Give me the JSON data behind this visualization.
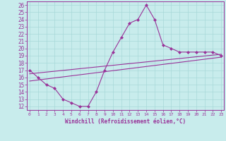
{
  "x_data": [
    0,
    1,
    2,
    3,
    4,
    5,
    6,
    7,
    8,
    9,
    10,
    11,
    12,
    13,
    14,
    15,
    16,
    17,
    18,
    19,
    20,
    21,
    22,
    23
  ],
  "line1": [
    17.0,
    16.0,
    15.0,
    14.5,
    13.0,
    12.5,
    12.0,
    12.0,
    14.0,
    17.0,
    19.5,
    21.5,
    23.5,
    24.0,
    26.0,
    24.0,
    20.5,
    20.0,
    19.5,
    19.5,
    19.5,
    19.5,
    19.5,
    19.0
  ],
  "line2_x": [
    0,
    23
  ],
  "line2_y": [
    16.5,
    19.2
  ],
  "line3_x": [
    0,
    23
  ],
  "line3_y": [
    15.5,
    18.8
  ],
  "xlim": [
    -0.3,
    23.3
  ],
  "ylim": [
    11.5,
    26.5
  ],
  "yticks": [
    12,
    13,
    14,
    15,
    16,
    17,
    18,
    19,
    20,
    21,
    22,
    23,
    24,
    25,
    26
  ],
  "xticks": [
    0,
    1,
    2,
    3,
    4,
    5,
    6,
    7,
    8,
    9,
    10,
    11,
    12,
    13,
    14,
    15,
    16,
    17,
    18,
    19,
    20,
    21,
    22,
    23
  ],
  "xlabel": "Windchill (Refroidissement éolien,°C)",
  "line_color": "#993399",
  "bg_color": "#c8ecec",
  "grid_color": "#a8d8d8",
  "tick_color": "#993399",
  "label_color": "#993399",
  "marker": "D",
  "marker_size": 2,
  "line_width": 0.8
}
